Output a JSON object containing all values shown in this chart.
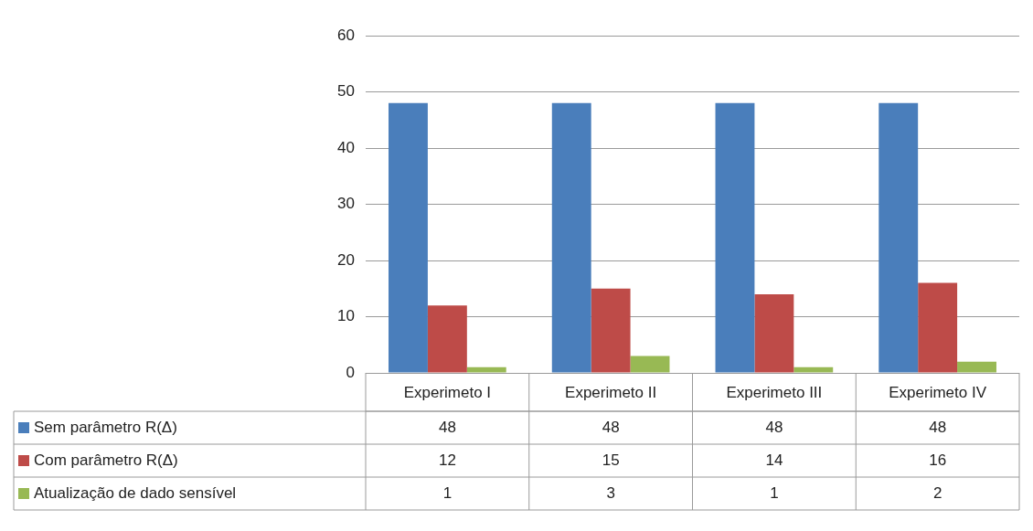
{
  "chart_data": {
    "type": "bar",
    "categories": [
      "Experimeto I",
      "Experimeto II",
      "Experimeto III",
      "Experimeto IV"
    ],
    "series": [
      {
        "name": "Sem parâmetro R(Δ)",
        "color": "#4a7ebb",
        "values": [
          48,
          48,
          48,
          48
        ]
      },
      {
        "name": "Com parâmetro R(Δ)",
        "color": "#be4b48",
        "values": [
          12,
          15,
          14,
          16
        ]
      },
      {
        "name": "Atualização de dado sensível",
        "color": "#98b954",
        "values": [
          1,
          3,
          1,
          2
        ]
      }
    ],
    "ylim": [
      0,
      60
    ],
    "yticks": [
      0,
      10,
      20,
      30,
      40,
      50,
      60
    ],
    "grid": "y",
    "legend": "bottom",
    "data_labels": true
  }
}
